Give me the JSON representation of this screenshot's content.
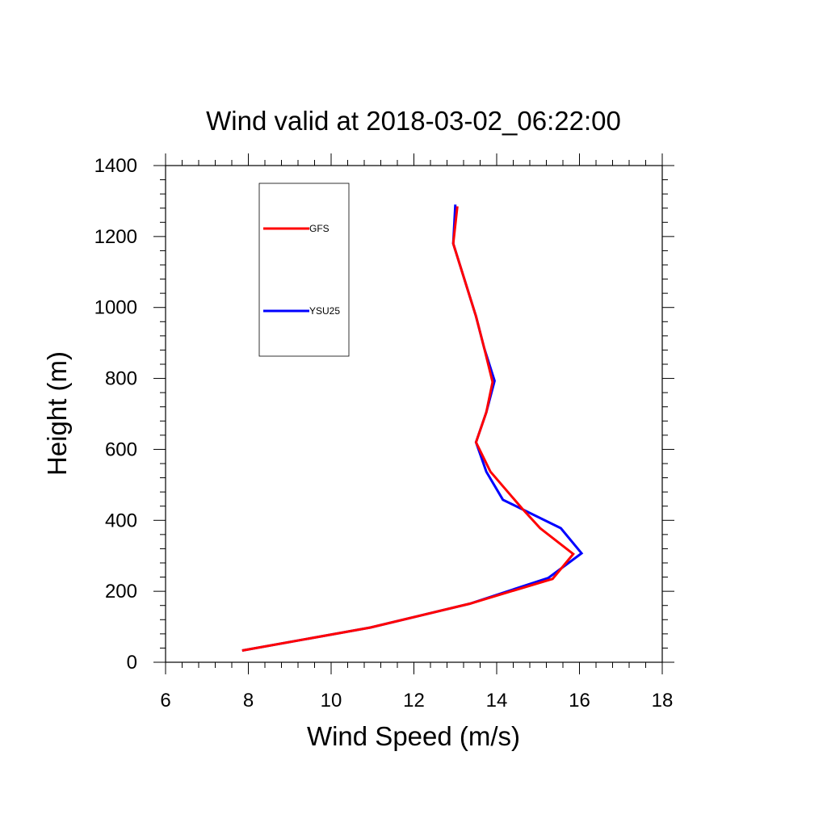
{
  "chart_data": {
    "type": "line",
    "title": "Wind valid at 2018-03-02_06:22:00",
    "xlabel": "Wind Speed (m/s)",
    "ylabel": "Height (m)",
    "xlim": [
      6,
      18
    ],
    "ylim": [
      0,
      1400
    ],
    "x_ticks": [
      "6",
      "8",
      "10",
      "12",
      "14",
      "16",
      "18"
    ],
    "y_ticks": [
      "0",
      "200",
      "400",
      "600",
      "800",
      "1000",
      "1200",
      "1400"
    ],
    "grid": false,
    "legend_position": "top-left",
    "series": [
      {
        "name": "GFS",
        "color": "#ff0000",
        "points": [
          {
            "x": 7.85,
            "y": 33
          },
          {
            "x": 10.95,
            "y": 98
          },
          {
            "x": 13.35,
            "y": 165
          },
          {
            "x": 15.35,
            "y": 235
          },
          {
            "x": 15.85,
            "y": 305
          },
          {
            "x": 15.05,
            "y": 378
          },
          {
            "x": 14.6,
            "y": 435
          },
          {
            "x": 13.85,
            "y": 537
          },
          {
            "x": 13.5,
            "y": 620
          },
          {
            "x": 13.75,
            "y": 705
          },
          {
            "x": 13.9,
            "y": 790
          },
          {
            "x": 13.7,
            "y": 885
          },
          {
            "x": 13.5,
            "y": 975
          },
          {
            "x": 12.95,
            "y": 1180
          },
          {
            "x": 13.05,
            "y": 1285
          }
        ]
      },
      {
        "name": "YSU25",
        "color": "#0000ff",
        "points": [
          {
            "x": 7.85,
            "y": 33
          },
          {
            "x": 10.95,
            "y": 98
          },
          {
            "x": 13.35,
            "y": 165
          },
          {
            "x": 15.25,
            "y": 238
          },
          {
            "x": 16.05,
            "y": 307
          },
          {
            "x": 15.55,
            "y": 378
          },
          {
            "x": 14.15,
            "y": 458
          },
          {
            "x": 13.75,
            "y": 537
          },
          {
            "x": 13.5,
            "y": 620
          },
          {
            "x": 13.75,
            "y": 705
          },
          {
            "x": 13.95,
            "y": 793
          },
          {
            "x": 13.7,
            "y": 885
          },
          {
            "x": 13.5,
            "y": 975
          },
          {
            "x": 12.95,
            "y": 1180
          },
          {
            "x": 13.0,
            "y": 1290
          }
        ]
      }
    ]
  }
}
